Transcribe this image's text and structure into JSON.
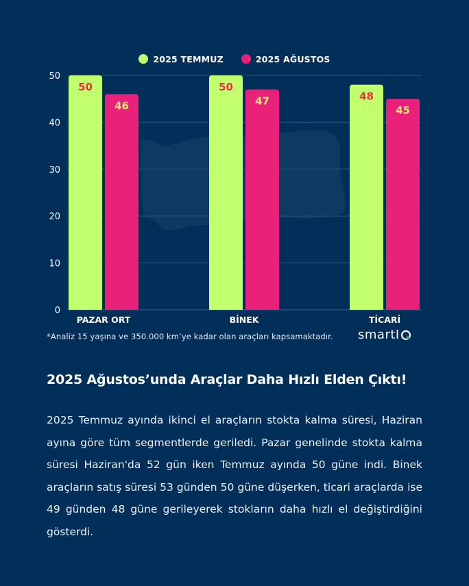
{
  "colors": {
    "background": "#022f5a",
    "series_temmuz": "#c2ff6e",
    "series_agustos": "#e8217a",
    "label_on_green": "#e2363f",
    "label_on_pink": "#f6e27a",
    "grid": "#2b5378",
    "map": "#0d3a61"
  },
  "chart_data": {
    "type": "bar",
    "title": "",
    "xlabel": "",
    "ylabel": "",
    "categories": [
      "PAZAR ORT",
      "BİNEK",
      "TİCARİ"
    ],
    "series": [
      {
        "name": "2025 TEMMUZ",
        "values": [
          50,
          50,
          48
        ]
      },
      {
        "name": "2025 AĞUSTOS",
        "values": [
          46,
          47,
          45
        ]
      }
    ],
    "ylim": [
      0,
      50
    ],
    "yticks": [
      0,
      10,
      20,
      30,
      40,
      50
    ],
    "grid": true,
    "legend": "top-center",
    "data_labels": true
  },
  "footnote": "*Analiz 15 yaşına ve 350.000 km’ye kadar olan araçları kapsamaktadır.",
  "logo": {
    "text": "smartI",
    "icon": "q-play-logo-icon"
  },
  "heading": "2025 Ağustos’unda Araçlar Daha Hızlı Elden Çıktı!",
  "paragraph": "2025 Temmuz ayında ikinci el araçların stokta kalma süresi, Haziran ayına göre tüm segmentlerde geriledi. Pazar genelinde stokta kalma süresi Haziran'da 52 gün iken Temmuz ayında 50 güne indi. Binek araçların satış süresi 53 günden 50 güne düşerken, ticari araçlarda ise 49 günden 48 güne gerileyerek stokların daha hızlı el değiştirdiğini gösterdi."
}
